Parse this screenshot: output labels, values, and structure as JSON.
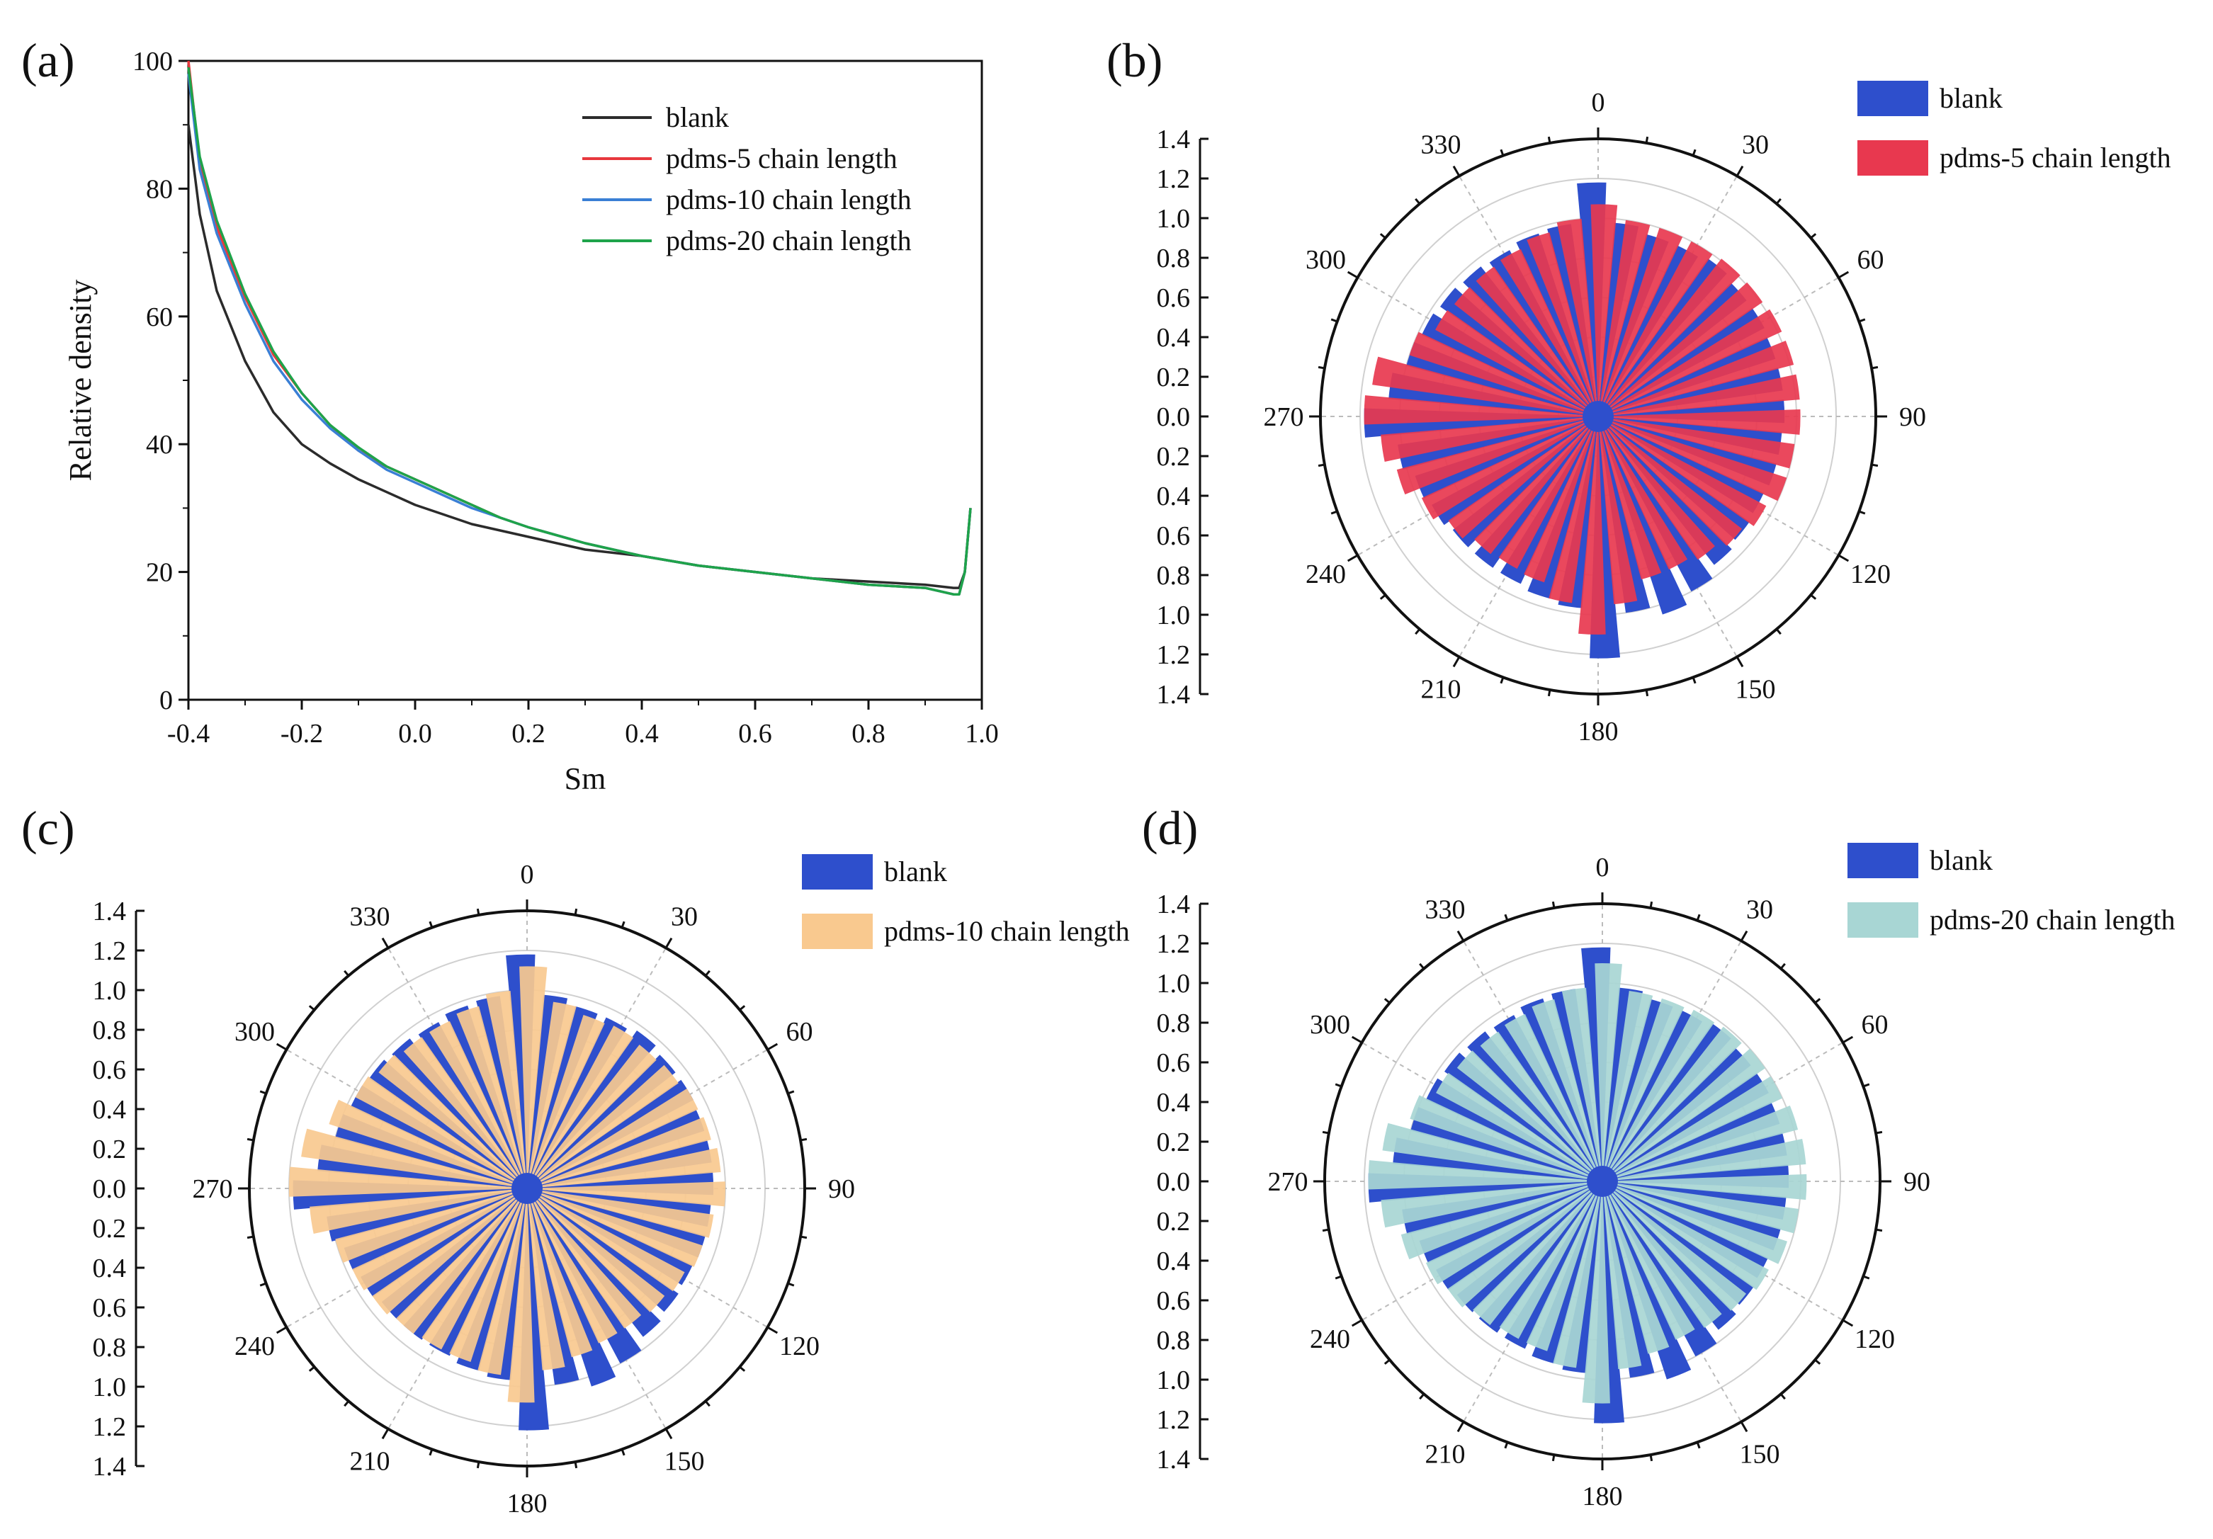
{
  "figure": {
    "panels": [
      "(a)",
      "(b)",
      "(c)",
      "(d)"
    ]
  },
  "chart_data": [
    {
      "panel": "(a)",
      "type": "line",
      "xlabel": "Sm",
      "ylabel": "Relative density",
      "xlim": [
        -0.4,
        1.0
      ],
      "ylim": [
        0,
        100
      ],
      "xticks": [
        "-0.4",
        "-0.2",
        "0.0",
        "0.2",
        "0.4",
        "0.6",
        "0.8",
        "1.0"
      ],
      "yticks": [
        "0",
        "20",
        "40",
        "60",
        "80",
        "100"
      ],
      "legend_position": "top-right",
      "series": [
        {
          "name": "blank",
          "color": "#2b2b2b",
          "x": [
            -0.4,
            -0.38,
            -0.35,
            -0.3,
            -0.25,
            -0.2,
            -0.15,
            -0.1,
            -0.05,
            0.0,
            0.05,
            0.1,
            0.15,
            0.2,
            0.3,
            0.4,
            0.5,
            0.6,
            0.7,
            0.8,
            0.9,
            0.95,
            0.96,
            0.97,
            0.98
          ],
          "y": [
            90,
            76,
            64,
            53,
            45,
            40,
            37,
            34.5,
            32.5,
            30.5,
            29,
            27.5,
            26.5,
            25.5,
            23.5,
            22.5,
            21,
            20,
            19,
            18.5,
            18,
            17.5,
            17.5,
            20,
            30
          ]
        },
        {
          "name": "pdms-5 chain length",
          "color": "#e8383d",
          "x": [
            -0.4,
            -0.38,
            -0.35,
            -0.3,
            -0.25,
            -0.2,
            -0.15,
            -0.1,
            -0.05,
            0.0,
            0.05,
            0.1,
            0.15,
            0.2,
            0.3,
            0.4,
            0.5,
            0.6,
            0.7,
            0.8,
            0.9,
            0.95,
            0.96,
            0.97,
            0.98
          ],
          "y": [
            100,
            84,
            74,
            63,
            54,
            48,
            43,
            39,
            36.5,
            34.5,
            32.5,
            30.5,
            28.5,
            27,
            24.5,
            22.5,
            21,
            20,
            19,
            18,
            17.5,
            16.5,
            16.5,
            20,
            30
          ]
        },
        {
          "name": "pdms-10 chain length",
          "color": "#3a7fd5",
          "x": [
            -0.4,
            -0.38,
            -0.35,
            -0.3,
            -0.25,
            -0.2,
            -0.15,
            -0.1,
            -0.05,
            0.0,
            0.05,
            0.1,
            0.15,
            0.2,
            0.3,
            0.4,
            0.5,
            0.6,
            0.7,
            0.8,
            0.9,
            0.95,
            0.96,
            0.97,
            0.98
          ],
          "y": [
            98,
            83,
            73,
            62,
            53,
            47,
            42.5,
            39,
            36,
            34,
            32,
            30,
            28.5,
            27,
            24.5,
            22.5,
            21,
            20,
            19,
            18,
            17.5,
            16.5,
            16.5,
            20,
            30
          ]
        },
        {
          "name": "pdms-20 chain length",
          "color": "#1ea34a",
          "x": [
            -0.4,
            -0.38,
            -0.35,
            -0.3,
            -0.25,
            -0.2,
            -0.15,
            -0.1,
            -0.05,
            0.0,
            0.05,
            0.1,
            0.15,
            0.2,
            0.3,
            0.4,
            0.5,
            0.6,
            0.7,
            0.8,
            0.9,
            0.95,
            0.96,
            0.97,
            0.98
          ],
          "y": [
            99,
            85,
            75,
            63.5,
            54.5,
            48,
            43,
            39.5,
            36.5,
            34.5,
            32.5,
            30.5,
            28.5,
            27,
            24.5,
            22.5,
            21,
            20,
            19,
            18,
            17.5,
            16.5,
            16.5,
            20,
            30
          ]
        }
      ]
    },
    {
      "panel": "(b)",
      "type": "bar",
      "subtype": "polar",
      "rlim": [
        0,
        1.4
      ],
      "rticks_top": [
        "1.4",
        "1.2",
        "1.0",
        "0.8",
        "0.6",
        "0.4",
        "0.2",
        "0.0"
      ],
      "rticks_bottom": [
        "0.2",
        "0.4",
        "0.6",
        "0.8",
        "1.0",
        "1.2",
        "1.4"
      ],
      "angle_labels": [
        "0",
        "30",
        "60",
        "90",
        "120",
        "150",
        "180",
        "210",
        "240",
        "270",
        "300",
        "330"
      ],
      "legend_position": "top-right",
      "angles": [
        0,
        10,
        20,
        30,
        40,
        50,
        60,
        70,
        80,
        90,
        100,
        110,
        120,
        130,
        140,
        150,
        160,
        170,
        180,
        190,
        200,
        210,
        220,
        230,
        240,
        250,
        260,
        270,
        280,
        290,
        300,
        310,
        320,
        330,
        340,
        350
      ],
      "series": [
        {
          "name": "blank",
          "color": "#2e4fcc",
          "values": [
            1.18,
            0.98,
            0.95,
            0.95,
            0.97,
            0.95,
            0.95,
            0.94,
            0.94,
            0.94,
            0.93,
            0.93,
            0.92,
            0.93,
            0.95,
            1.0,
            1.05,
            1.0,
            1.22,
            0.97,
            0.95,
            0.93,
            0.93,
            0.93,
            0.95,
            0.97,
            1.02,
            1.18,
            1.06,
            1.0,
            0.98,
            0.97,
            0.96,
            0.95,
            0.97,
            0.98
          ]
        },
        {
          "name": "pdms-5 chain length",
          "color": "#e8384f",
          "values": [
            1.07,
            1.0,
            1.0,
            1.0,
            1.01,
            1.01,
            1.02,
            1.02,
            1.02,
            1.02,
            1.0,
            1.0,
            0.96,
            0.92,
            0.88,
            0.85,
            0.85,
            0.95,
            1.1,
            0.95,
            0.88,
            0.87,
            0.88,
            0.92,
            0.98,
            1.05,
            1.1,
            1.18,
            1.15,
            1.0,
            0.93,
            0.92,
            0.92,
            0.93,
            0.96,
            1.0
          ]
        }
      ]
    },
    {
      "panel": "(c)",
      "type": "bar",
      "subtype": "polar",
      "rlim": [
        0,
        1.4
      ],
      "rticks_top": [
        "1.4",
        "1.2",
        "1.0",
        "0.8",
        "0.6",
        "0.4",
        "0.2",
        "0.0"
      ],
      "rticks_bottom": [
        "0.2",
        "0.4",
        "0.6",
        "0.8",
        "1.0",
        "1.2",
        "1.4"
      ],
      "angle_labels": [
        "0",
        "30",
        "60",
        "90",
        "120",
        "150",
        "180",
        "210",
        "240",
        "270",
        "300",
        "330"
      ],
      "legend_position": "top-right",
      "angles": [
        0,
        10,
        20,
        30,
        40,
        50,
        60,
        70,
        80,
        90,
        100,
        110,
        120,
        130,
        140,
        150,
        160,
        170,
        180,
        190,
        200,
        210,
        220,
        230,
        240,
        250,
        260,
        270,
        280,
        290,
        300,
        310,
        320,
        330,
        340,
        350
      ],
      "series": [
        {
          "name": "blank",
          "color": "#2e4fcc",
          "values": [
            1.18,
            0.98,
            0.95,
            0.95,
            0.97,
            0.95,
            0.95,
            0.94,
            0.94,
            0.94,
            0.93,
            0.93,
            0.92,
            0.93,
            0.95,
            1.0,
            1.05,
            1.0,
            1.22,
            0.97,
            0.95,
            0.93,
            0.93,
            0.93,
            0.95,
            0.97,
            1.02,
            1.18,
            1.06,
            1.0,
            0.98,
            0.97,
            0.96,
            0.95,
            0.97,
            0.98
          ]
        },
        {
          "name": "pdms-10 chain length",
          "color": "#f9c98f",
          "values": [
            1.12,
            0.95,
            0.92,
            0.93,
            0.92,
            0.93,
            0.95,
            0.96,
            0.98,
            1.0,
            0.95,
            0.93,
            0.9,
            0.88,
            0.86,
            0.86,
            0.88,
            0.92,
            1.08,
            0.95,
            0.92,
            0.92,
            0.93,
            0.95,
            0.97,
            1.0,
            1.1,
            1.2,
            1.15,
            1.05,
            0.98,
            0.95,
            0.93,
            0.93,
            0.95,
            1.0
          ]
        }
      ]
    },
    {
      "panel": "(d)",
      "type": "bar",
      "subtype": "polar",
      "rlim": [
        0,
        1.4
      ],
      "rticks_top": [
        "1.4",
        "1.2",
        "1.0",
        "0.8",
        "0.6",
        "0.4",
        "0.2",
        "0.0"
      ],
      "rticks_bottom": [
        "0.2",
        "0.4",
        "0.6",
        "0.8",
        "1.0",
        "1.2",
        "1.4"
      ],
      "angle_labels": [
        "0",
        "30",
        "60",
        "90",
        "120",
        "150",
        "180",
        "210",
        "240",
        "270",
        "300",
        "330"
      ],
      "legend_position": "top-right",
      "angles": [
        0,
        10,
        20,
        30,
        40,
        50,
        60,
        70,
        80,
        90,
        100,
        110,
        120,
        130,
        140,
        150,
        160,
        170,
        180,
        190,
        200,
        210,
        220,
        230,
        240,
        250,
        260,
        270,
        280,
        290,
        300,
        310,
        320,
        330,
        340,
        350
      ],
      "series": [
        {
          "name": "blank",
          "color": "#2e4fcc",
          "values": [
            1.18,
            0.98,
            0.95,
            0.95,
            0.97,
            0.95,
            0.95,
            0.94,
            0.94,
            0.94,
            0.93,
            0.93,
            0.92,
            0.93,
            0.95,
            1.0,
            1.05,
            1.0,
            1.22,
            0.97,
            0.95,
            0.93,
            0.93,
            0.93,
            0.95,
            0.97,
            1.02,
            1.18,
            1.06,
            1.0,
            0.98,
            0.97,
            0.96,
            0.95,
            0.97,
            0.98
          ]
        },
        {
          "name": "pdms-20 chain length",
          "color": "#a8d6d4",
          "values": [
            1.1,
            0.97,
            0.97,
            0.98,
            0.99,
            1.0,
            1.0,
            1.02,
            1.03,
            1.03,
            1.0,
            0.98,
            0.95,
            0.92,
            0.9,
            0.88,
            0.9,
            0.95,
            1.12,
            0.95,
            0.9,
            0.9,
            0.92,
            0.95,
            0.98,
            1.05,
            1.12,
            1.18,
            1.12,
            1.02,
            0.95,
            0.93,
            0.92,
            0.93,
            0.95,
            0.98
          ]
        }
      ]
    }
  ]
}
